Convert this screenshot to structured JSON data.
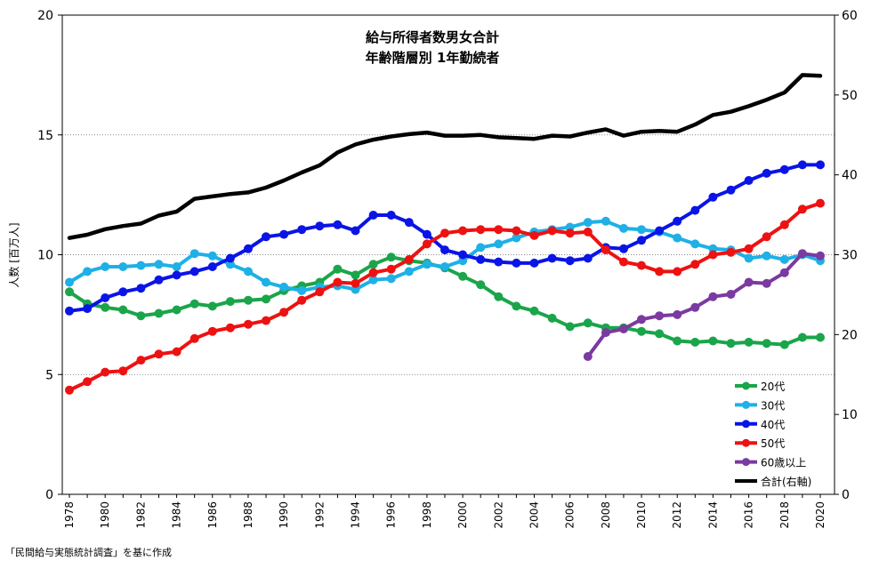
{
  "chart_data": {
    "type": "line",
    "title": [
      "給与所得者数男女合計",
      "年齢階層別 1年勤続者"
    ],
    "ylabel": "人数 [百万人]",
    "source": "「民間給与実態統計調査」を基に作成",
    "x": [
      1978,
      1979,
      1980,
      1981,
      1982,
      1983,
      1984,
      1985,
      1986,
      1987,
      1988,
      1989,
      1990,
      1991,
      1992,
      1993,
      1994,
      1995,
      1996,
      1997,
      1998,
      1999,
      2000,
      2001,
      2002,
      2003,
      2004,
      2005,
      2006,
      2007,
      2008,
      2009,
      2010,
      2011,
      2012,
      2013,
      2014,
      2015,
      2016,
      2017,
      2018,
      2019,
      2020
    ],
    "xticks": [
      1978,
      1980,
      1982,
      1984,
      1986,
      1988,
      1990,
      1992,
      1994,
      1996,
      1998,
      2000,
      2002,
      2004,
      2006,
      2008,
      2010,
      2012,
      2014,
      2016,
      2018,
      2020
    ],
    "ylim_left": [
      0,
      20
    ],
    "yticks_left": [
      0,
      5,
      10,
      15,
      20
    ],
    "ylim_right": [
      0,
      60
    ],
    "yticks_right": [
      0,
      10,
      20,
      30,
      40,
      50,
      60
    ],
    "grid": "horizontal dotted at 5, 10, 15",
    "legend_position": "bottom-right",
    "series": [
      {
        "name": "20代",
        "color": "#1aa54a",
        "axis": "left",
        "marker": true,
        "values": [
          8.45,
          7.95,
          7.8,
          7.7,
          7.45,
          7.55,
          7.7,
          7.95,
          7.85,
          8.05,
          8.1,
          8.15,
          8.5,
          8.7,
          8.85,
          9.4,
          9.15,
          9.6,
          9.9,
          9.75,
          9.65,
          9.45,
          9.1,
          8.75,
          8.25,
          7.85,
          7.65,
          7.35,
          7.0,
          7.15,
          6.95,
          6.95,
          6.8,
          6.7,
          6.4,
          6.35,
          6.4,
          6.3,
          6.35,
          6.3,
          6.25,
          6.55,
          6.55
        ]
      },
      {
        "name": "30代",
        "color": "#1eb0e6",
        "axis": "left",
        "marker": true,
        "values": [
          8.85,
          9.3,
          9.5,
          9.5,
          9.55,
          9.6,
          9.5,
          10.05,
          9.95,
          9.6,
          9.3,
          8.85,
          8.65,
          8.5,
          8.65,
          8.7,
          8.55,
          8.95,
          9.0,
          9.3,
          9.6,
          9.5,
          9.75,
          10.3,
          10.45,
          10.7,
          10.95,
          11.05,
          11.15,
          11.35,
          11.4,
          11.1,
          11.05,
          10.95,
          10.7,
          10.45,
          10.25,
          10.2,
          9.85,
          9.95,
          9.8,
          10.0,
          9.75
        ]
      },
      {
        "name": "40代",
        "color": "#0a14e6",
        "axis": "left",
        "marker": true,
        "values": [
          7.65,
          7.75,
          8.2,
          8.45,
          8.6,
          8.95,
          9.15,
          9.3,
          9.5,
          9.85,
          10.25,
          10.75,
          10.85,
          11.05,
          11.2,
          11.25,
          11.0,
          11.65,
          11.65,
          11.35,
          10.85,
          10.2,
          10.0,
          9.8,
          9.7,
          9.65,
          9.65,
          9.85,
          9.75,
          9.85,
          10.3,
          10.25,
          10.6,
          11.0,
          11.4,
          11.85,
          12.4,
          12.7,
          13.1,
          13.4,
          13.55,
          13.75,
          13.75
        ]
      },
      {
        "name": "50代",
        "color": "#ee1111",
        "axis": "left",
        "marker": true,
        "values": [
          4.35,
          4.7,
          5.1,
          5.15,
          5.6,
          5.85,
          5.95,
          6.5,
          6.8,
          6.95,
          7.1,
          7.25,
          7.6,
          8.1,
          8.45,
          8.85,
          8.8,
          9.25,
          9.4,
          9.8,
          10.45,
          10.9,
          11.0,
          11.05,
          11.05,
          11.0,
          10.8,
          11.0,
          10.9,
          10.95,
          10.2,
          9.7,
          9.55,
          9.3,
          9.3,
          9.6,
          10.0,
          10.1,
          10.25,
          10.75,
          11.25,
          11.9,
          12.15
        ]
      },
      {
        "name": "60歳以上",
        "color": "#7a3aa0",
        "axis": "left",
        "marker": true,
        "values": [
          null,
          null,
          null,
          null,
          null,
          null,
          null,
          null,
          null,
          null,
          null,
          null,
          null,
          null,
          null,
          null,
          null,
          null,
          null,
          null,
          null,
          null,
          null,
          null,
          null,
          null,
          null,
          null,
          null,
          5.75,
          6.75,
          6.9,
          7.3,
          7.45,
          7.5,
          7.8,
          8.25,
          8.35,
          8.85,
          8.8,
          9.25,
          10.05,
          9.95
        ]
      },
      {
        "name": "合計(右軸)",
        "color": "#000000",
        "axis": "right",
        "marker": false,
        "values": [
          32.1,
          32.5,
          33.2,
          33.6,
          33.9,
          34.9,
          35.4,
          37.0,
          37.3,
          37.6,
          37.8,
          38.4,
          39.3,
          40.3,
          41.2,
          42.8,
          43.8,
          44.4,
          44.8,
          45.1,
          45.3,
          44.9,
          44.9,
          45.0,
          44.7,
          44.6,
          44.5,
          44.9,
          44.8,
          45.3,
          45.7,
          44.9,
          45.4,
          45.5,
          45.4,
          46.3,
          47.5,
          47.9,
          48.6,
          49.4,
          50.3,
          52.5,
          52.4
        ]
      }
    ]
  }
}
